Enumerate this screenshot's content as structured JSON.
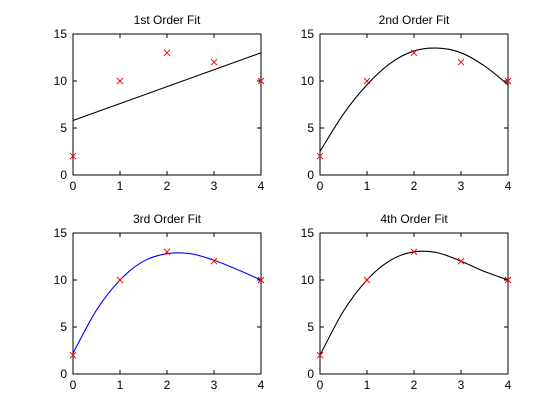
{
  "chart_data": [
    {
      "type": "line",
      "title": "1st Order Fit",
      "xlim": [
        0,
        4
      ],
      "ylim": [
        0,
        15
      ],
      "xticks": [
        "0",
        "1",
        "2",
        "3",
        "4"
      ],
      "yticks": [
        "0",
        "5",
        "10",
        "15"
      ],
      "grid": false,
      "points": {
        "marker": "x",
        "color": "#ff0000",
        "x": [
          0,
          1,
          2,
          3,
          4
        ],
        "y": [
          2,
          10,
          13,
          12,
          10
        ]
      },
      "fit": {
        "color": "#000000",
        "x": [
          0,
          4
        ],
        "y": [
          5.8,
          13.0
        ]
      }
    },
    {
      "type": "line",
      "title": "2nd Order Fit",
      "xlim": [
        0,
        4
      ],
      "ylim": [
        0,
        15
      ],
      "xticks": [
        "0",
        "1",
        "2",
        "3",
        "4"
      ],
      "yticks": [
        "0",
        "5",
        "10",
        "15"
      ],
      "grid": false,
      "points": {
        "marker": "x",
        "color": "#ff0000",
        "x": [
          0,
          1,
          2,
          3,
          4
        ],
        "y": [
          2,
          10,
          13,
          12,
          10
        ]
      },
      "fit": {
        "color": "#000000",
        "x": [
          0,
          0.5,
          1,
          1.5,
          2,
          2.5,
          3,
          3.5,
          4
        ],
        "y": [
          2.5,
          6.5,
          9.6,
          11.9,
          13.2,
          13.5,
          13.0,
          11.6,
          9.6
        ]
      }
    },
    {
      "type": "line",
      "title": "3rd Order Fit",
      "xlim": [
        0,
        4
      ],
      "ylim": [
        0,
        15
      ],
      "xticks": [
        "0",
        "1",
        "2",
        "3",
        "4"
      ],
      "yticks": [
        "0",
        "5",
        "10",
        "15"
      ],
      "grid": false,
      "points": {
        "marker": "x",
        "color": "#ff0000",
        "x": [
          0,
          1,
          2,
          3,
          4
        ],
        "y": [
          2,
          10,
          13,
          12,
          10
        ]
      },
      "fit": {
        "color": "#0000ff",
        "x": [
          0,
          0.5,
          1,
          1.5,
          2,
          2.5,
          3,
          3.5,
          4
        ],
        "y": [
          2.2,
          6.8,
          10.0,
          12.0,
          12.8,
          12.8,
          12.1,
          11.1,
          10.0
        ]
      }
    },
    {
      "type": "line",
      "title": "4th Order Fit",
      "xlim": [
        0,
        4
      ],
      "ylim": [
        0,
        15
      ],
      "xticks": [
        "0",
        "1",
        "2",
        "3",
        "4"
      ],
      "yticks": [
        "0",
        "5",
        "10",
        "15"
      ],
      "grid": false,
      "points": {
        "marker": "x",
        "color": "#ff0000",
        "x": [
          0,
          1,
          2,
          3,
          4
        ],
        "y": [
          2,
          10,
          13,
          12,
          10
        ]
      },
      "fit": {
        "color": "#000000",
        "x": [
          0,
          0.5,
          1,
          1.5,
          2,
          2.5,
          3,
          3.5,
          4
        ],
        "y": [
          2.0,
          6.7,
          10.0,
          12.1,
          13.0,
          12.9,
          12.0,
          10.9,
          10.0
        ]
      }
    }
  ]
}
